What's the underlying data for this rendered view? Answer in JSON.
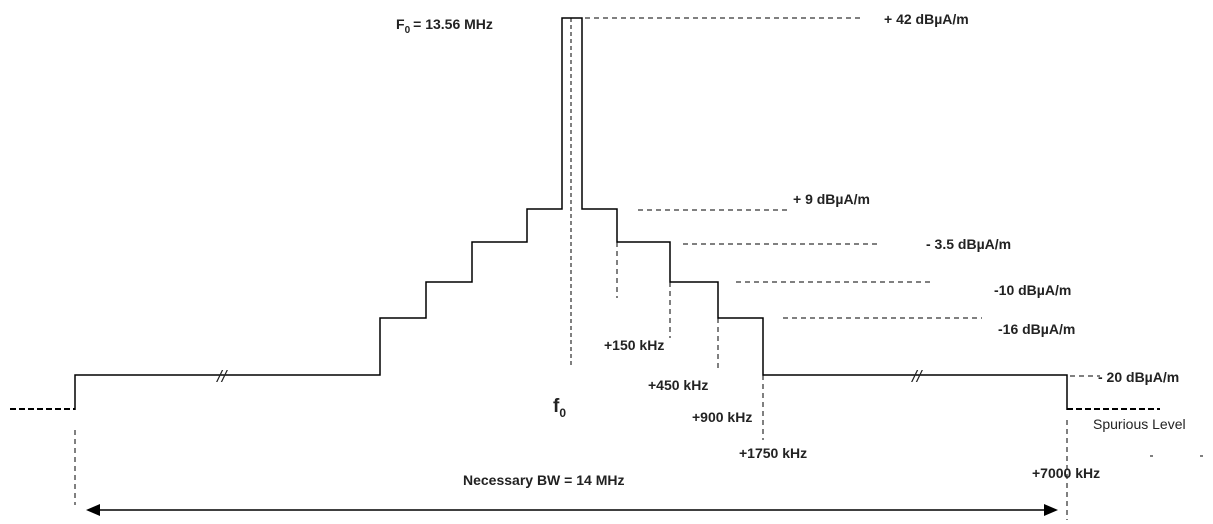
{
  "diagram": {
    "center_freq_label": "F",
    "center_freq_sub": "0",
    "center_freq_value": "= 13.56 MHz",
    "f0_symbol": "f",
    "f0_sub": "0",
    "levels": {
      "l42": "+ 42 dBµA/m",
      "l9": "+ 9 dBµA/m",
      "l3_5": "- 3.5 dBµA/m",
      "l10": "-10 dBµA/m",
      "l16": "-16 dBµA/m",
      "l20": "- 20 dBµA/m"
    },
    "offsets": {
      "o150": "+150 kHz",
      "o450": "+450 kHz",
      "o900": "+900 kHz",
      "o1750": "+1750 kHz",
      "o7000": "+7000 kHz"
    },
    "spurious_label": "Spurious Level",
    "break_mark": "//",
    "bandwidth_label": "Necessary BW = 14 MHz"
  }
}
